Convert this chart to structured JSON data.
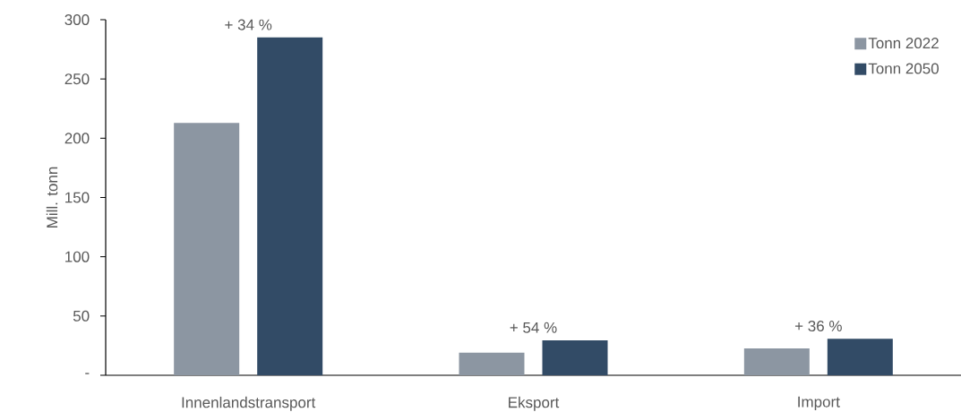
{
  "chart_data": {
    "type": "bar",
    "ylabel": "Mill. tonn",
    "categories": [
      "Innenlandstransport",
      "Eksport",
      "Import"
    ],
    "series": [
      {
        "name": "Tonn 2022",
        "color": "#8c96a2",
        "values": [
          213,
          19,
          22.7
        ]
      },
      {
        "name": "Tonn 2050",
        "color": "#324b66",
        "values": [
          285,
          29.5,
          30.8
        ]
      }
    ],
    "ylim": [
      0,
      300
    ],
    "yticks": [
      {
        "value": 0,
        "label": "-"
      },
      50,
      100,
      150,
      200,
      250,
      300
    ],
    "grid": false,
    "legend": "top right",
    "annotations": [
      "+ 34 %",
      "+ 54 %",
      "+ 36 %"
    ]
  }
}
